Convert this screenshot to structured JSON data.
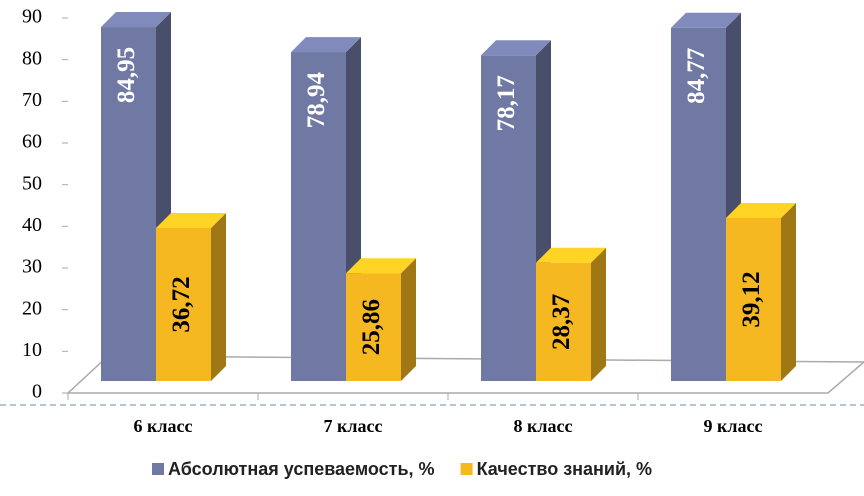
{
  "chart_data": {
    "type": "bar3d",
    "categories": [
      "6 класс",
      "7 класс",
      "8 класс",
      "9 класс"
    ],
    "series": [
      {
        "name": "Абсолютная успеваемость, %",
        "color": "#7079a3",
        "values": [
          84.95,
          78.94,
          78.17,
          84.77
        ],
        "value_labels": [
          "84,95",
          "78,94",
          "78,17",
          "84,77"
        ]
      },
      {
        "name": "Качество знаний, %",
        "color": "#f5b820",
        "values": [
          36.72,
          25.86,
          28.37,
          39.12
        ],
        "value_labels": [
          "36,72",
          "25,86",
          "28,37",
          "39,12"
        ]
      }
    ],
    "ylim": [
      0,
      90
    ],
    "yticks": [
      0,
      10,
      20,
      30,
      40,
      50,
      60,
      70,
      80,
      90
    ],
    "grid": false,
    "legend": "bottom"
  }
}
